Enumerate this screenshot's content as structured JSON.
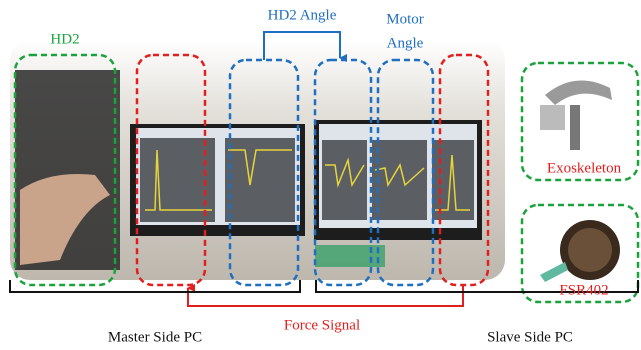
{
  "labels": {
    "hd2": "HD2",
    "hd2_angle": "HD2 Angle",
    "motor_angle": [
      "Motor",
      "Angle"
    ],
    "exoskeleton": "Exoskeleton",
    "fsr402": "FSR402",
    "master": "Master Side PC",
    "force_signal": "Force Signal",
    "slave": "Slave Side PC"
  }
}
